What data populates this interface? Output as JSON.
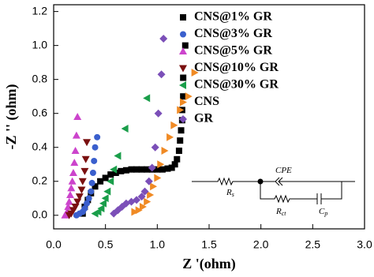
{
  "chart_data": {
    "type": "scatter",
    "x_label": "Z '(ohm)",
    "y_label": "-Z '' (ohm)",
    "xlim": [
      0,
      3.0
    ],
    "ylim": [
      -0.08,
      1.24
    ],
    "xticks": [
      {
        "value": 0,
        "label": "0.0"
      },
      0.5,
      {
        "value": 1,
        "label": "1.0"
      },
      1.5,
      {
        "value": 2,
        "label": "2.0"
      },
      2.5,
      {
        "value": 3,
        "label": "3.0"
      }
    ],
    "yticks": [
      {
        "value": 0,
        "label": "0.0"
      },
      0.2,
      0.4,
      0.6,
      0.8,
      {
        "value": 1,
        "label": "1.0"
      },
      1.2
    ],
    "legend": "upper right",
    "series": [
      {
        "name": "CNS@1% GR",
        "color": "#000000",
        "marker": "square",
        "x": [
          0.28,
          0.3,
          0.33,
          0.36,
          0.4,
          0.45,
          0.5,
          0.55,
          0.6,
          0.65,
          0.7,
          0.75,
          0.8,
          0.85,
          0.9,
          0.95,
          1.0,
          1.05,
          1.1,
          1.14,
          1.17,
          1.19,
          1.21,
          1.22,
          1.23,
          1.24,
          1.24,
          1.25,
          1.25,
          1.27
        ],
        "values": [
          0.01,
          0.05,
          0.09,
          0.13,
          0.17,
          0.2,
          0.22,
          0.24,
          0.25,
          0.26,
          0.265,
          0.27,
          0.27,
          0.27,
          0.27,
          0.27,
          0.27,
          0.27,
          0.275,
          0.28,
          0.3,
          0.33,
          0.38,
          0.44,
          0.5,
          0.56,
          0.62,
          0.7,
          0.81,
          1.0
        ]
      },
      {
        "name": "CNS@3% GR",
        "color": "#3a5fcd",
        "marker": "circle",
        "x": [
          0.22,
          0.25,
          0.28,
          0.3,
          0.32,
          0.34,
          0.36,
          0.37,
          0.38,
          0.39,
          0.4,
          0.42
        ],
        "values": [
          0,
          0.01,
          0.02,
          0.04,
          0.07,
          0.1,
          0.14,
          0.19,
          0.25,
          0.32,
          0.4,
          0.46
        ]
      },
      {
        "name": "CNS@5% GR",
        "color": "#cc44cc",
        "marker": "triangle-up",
        "x": [
          0.11,
          0.13,
          0.14,
          0.15,
          0.16,
          0.17,
          0.18,
          0.19,
          0.2,
          0.21,
          0.22,
          0.23
        ],
        "values": [
          0,
          0.02,
          0.05,
          0.08,
          0.12,
          0.16,
          0.2,
          0.25,
          0.31,
          0.38,
          0.47,
          0.58
        ]
      },
      {
        "name": "CNS@10% GR",
        "color": "#7a1010",
        "marker": "triangle-down",
        "x": [
          0.15,
          0.17,
          0.19,
          0.21,
          0.23,
          0.25,
          0.27,
          0.28,
          0.3,
          0.31,
          0.32
        ],
        "values": [
          0,
          0.01,
          0.03,
          0.05,
          0.08,
          0.11,
          0.15,
          0.2,
          0.26,
          0.33,
          0.43
        ]
      },
      {
        "name": "CNS@30% GR",
        "color": "#1a9e4a",
        "marker": "triangle-left",
        "x": [
          0.4,
          0.43,
          0.46,
          0.48,
          0.5,
          0.52,
          0.55,
          0.58,
          0.62,
          0.69,
          0.9
        ],
        "values": [
          0.01,
          0.02,
          0.04,
          0.07,
          0.1,
          0.14,
          0.2,
          0.27,
          0.35,
          0.51,
          0.69
        ]
      },
      {
        "name": "CNS",
        "color": "#f08a24",
        "marker": "triangle-right",
        "x": [
          0.78,
          0.82,
          0.86,
          0.9,
          0.93,
          0.96,
          1.0,
          1.03,
          1.07,
          1.12,
          1.16,
          1.22,
          1.3,
          1.36
        ],
        "values": [
          0.02,
          0.03,
          0.05,
          0.08,
          0.12,
          0.17,
          0.22,
          0.3,
          0.38,
          0.46,
          0.53,
          0.62,
          0.7,
          0.84
        ]
      },
      {
        "name": "GR",
        "color": "#7b4fb8",
        "marker": "diamond",
        "x": [
          0.58,
          0.62,
          0.66,
          0.7,
          0.75,
          0.8,
          0.85,
          0.88,
          0.92,
          0.95,
          0.98,
          1.01,
          1.04,
          1.06
        ],
        "values": [
          0.01,
          0.03,
          0.05,
          0.07,
          0.08,
          0.09,
          0.11,
          0.14,
          0.2,
          0.28,
          0.4,
          0.6,
          0.83,
          1.04
        ]
      }
    ],
    "circuit_labels": [
      {
        "main": "CPE"
      },
      {
        "main": "R",
        "sub": "s"
      },
      {
        "main": "R",
        "sub": "ct"
      },
      {
        "main": "C",
        "sub": "p"
      }
    ]
  }
}
